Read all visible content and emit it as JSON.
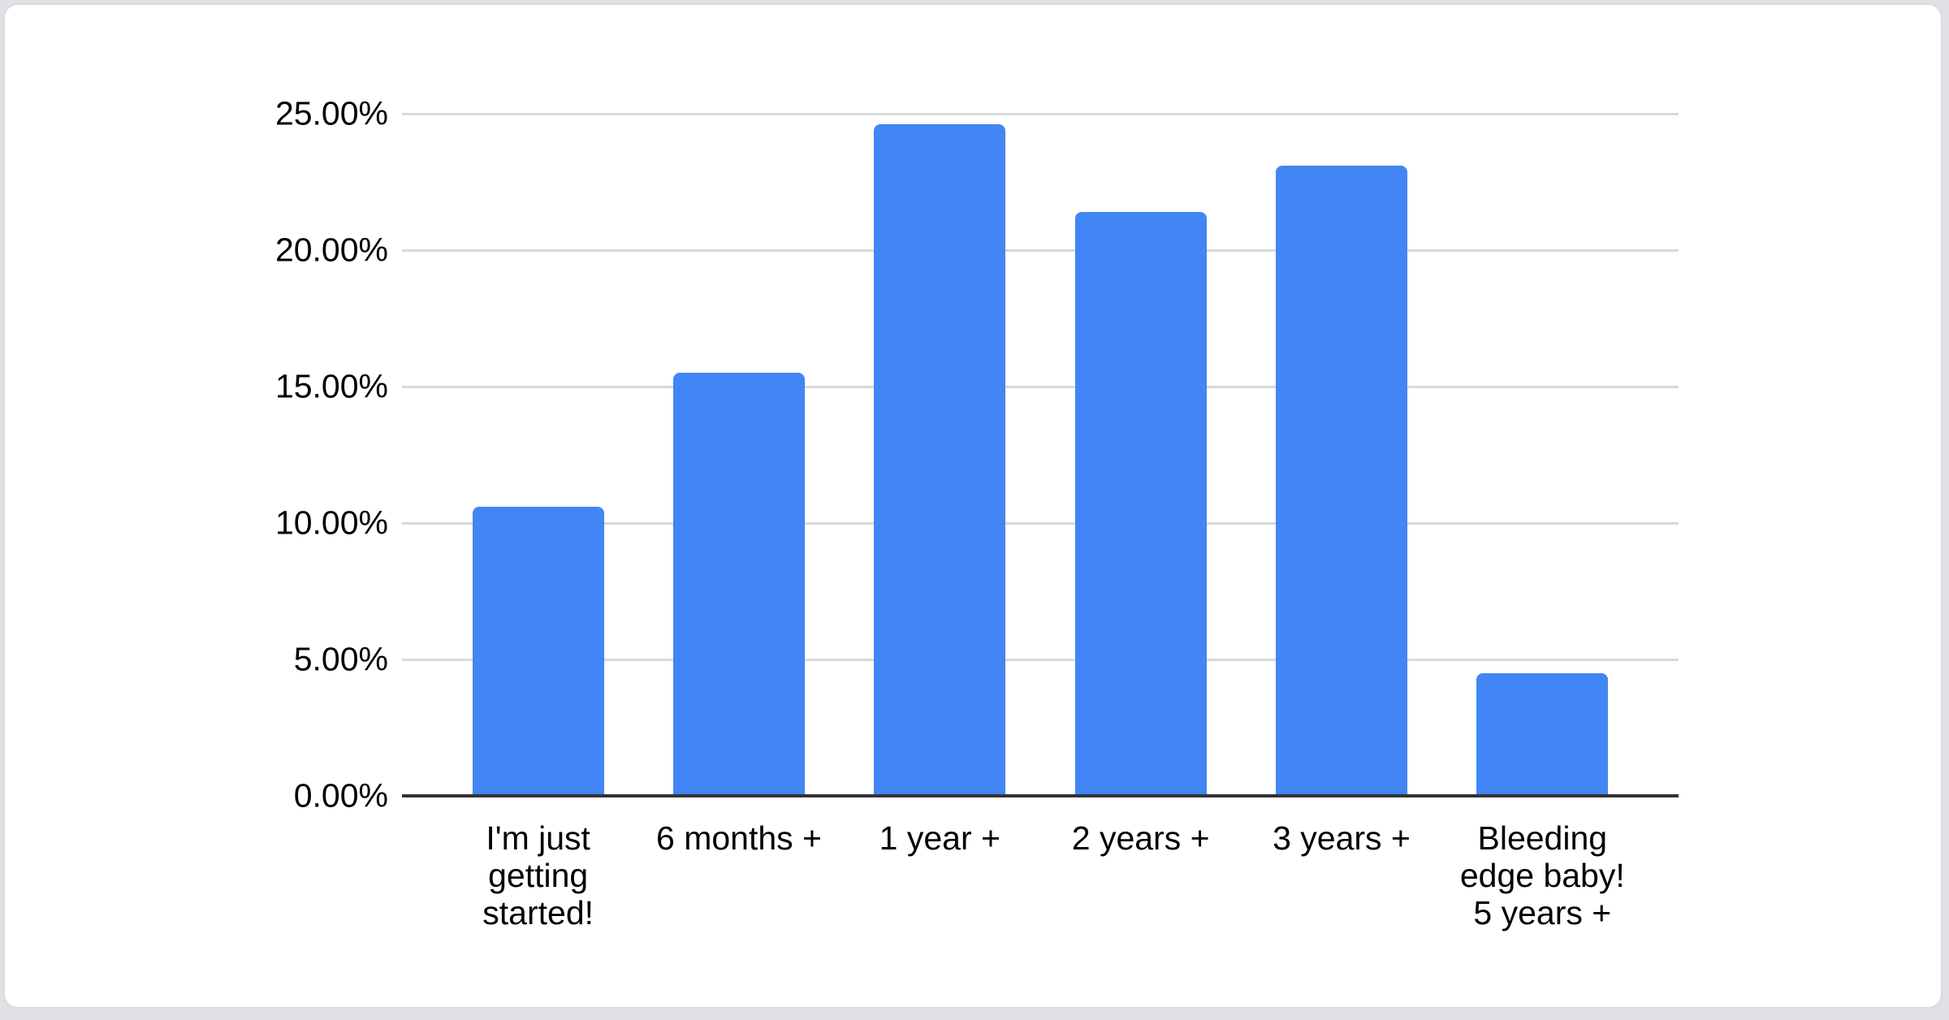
{
  "page": {
    "background_color": "#dfe1e5",
    "card_background": "#ffffff",
    "card_border_color": "#d9dbdf"
  },
  "chart_data": {
    "type": "bar",
    "categories": [
      "I'm just getting started!",
      "6 months +",
      "1 year +",
      "2 years +",
      "3 years +",
      "Bleeding edge baby! 5 years +"
    ],
    "values": [
      10.6,
      15.5,
      24.6,
      21.4,
      23.1,
      4.5
    ],
    "value_format": "percent",
    "y_ticks": [
      "0.00%",
      "5.00%",
      "10.00%",
      "15.00%",
      "20.00%",
      "25.00%"
    ],
    "ylim": [
      0,
      25
    ],
    "y_tick_step": 5,
    "grid": true,
    "legend": "none",
    "bar_color": "#4285f4",
    "gridline_color": "#d9d9d9",
    "baseline_color": "#333333",
    "text_color": "#000000"
  }
}
